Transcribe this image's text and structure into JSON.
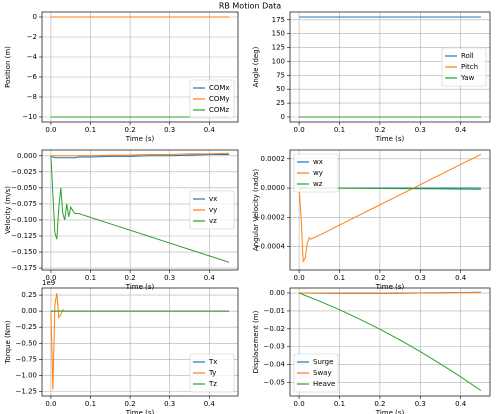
{
  "title": "RB Motion Data",
  "chart_data": [
    {
      "type": "line",
      "xlabel": "Time (s)",
      "ylabel": "Position (m)",
      "x": [
        0,
        0.45
      ],
      "series": [
        {
          "name": "COMx",
          "color": "#1f77b4",
          "values": [
            0,
            0
          ]
        },
        {
          "name": "COMy",
          "color": "#ff7f0e",
          "values": [
            0,
            0
          ]
        },
        {
          "name": "COMz",
          "color": "#2ca02c",
          "values": [
            -10,
            -10
          ]
        }
      ],
      "xlim": [
        -0.0225,
        0.4725
      ],
      "ylim": [
        -10.5,
        0.5
      ],
      "xticks": [
        {
          "value": 0,
          "label": "0.0"
        },
        0.1,
        0.2,
        0.3,
        0.4
      ],
      "yticks": [
        0,
        {
          "value": -2,
          "label": "−2"
        },
        {
          "value": -4,
          "label": "−4"
        },
        {
          "value": -6,
          "label": "−6"
        },
        {
          "value": -8,
          "label": "−8"
        },
        {
          "value": -10,
          "label": "−10"
        }
      ],
      "grid": true,
      "legend_loc": "lower right"
    },
    {
      "type": "line",
      "xlabel": "Time (s)",
      "ylabel": "Angle (deg)",
      "x": [
        0,
        0.45
      ],
      "series": [
        {
          "name": "Roll",
          "color": "#1f77b4",
          "values": [
            180,
            180
          ]
        },
        {
          "name": "Pitch",
          "color": "#ff7f0e",
          "values": [
            0,
            0
          ]
        },
        {
          "name": "Yaw",
          "color": "#2ca02c",
          "values": [
            0,
            0
          ]
        }
      ],
      "xlim": [
        -0.0225,
        0.4725
      ],
      "ylim": [
        -9,
        189
      ],
      "xticks": [
        {
          "value": 0,
          "label": "0.0"
        },
        0.1,
        0.2,
        0.3,
        0.4
      ],
      "yticks": [
        0,
        25,
        50,
        75,
        100,
        125,
        150,
        175
      ],
      "grid": true,
      "legend_loc": "center right"
    },
    {
      "type": "line",
      "xlabel": "Time (s)",
      "ylabel": "Velocity (m/s)",
      "x": [
        0,
        0.005,
        0.01,
        0.015,
        0.02,
        0.025,
        0.03,
        0.035,
        0.04,
        0.045,
        0.05,
        0.06,
        0.07,
        0.08,
        0.1,
        0.15,
        0.2,
        0.25,
        0.3,
        0.35,
        0.4,
        0.45
      ],
      "series": [
        {
          "name": "vx",
          "color": "#1f77b4",
          "values": [
            0,
            -0.002,
            -0.003,
            -0.003,
            -0.003,
            -0.003,
            -0.003,
            -0.003,
            -0.003,
            -0.003,
            -0.003,
            -0.003,
            -0.002,
            -0.002,
            -0.002,
            -0.001,
            -0.001,
            0,
            0,
            0.001,
            0.002,
            0.002
          ]
        },
        {
          "name": "vy",
          "color": "#ff7f0e",
          "values": [
            0,
            0,
            0,
            0,
            0,
            0,
            0,
            0,
            0,
            0,
            0,
            0,
            0,
            0,
            0,
            0.001,
            0.001,
            0.002,
            0.002,
            0.003,
            0.003,
            0.004
          ]
        },
        {
          "name": "vz",
          "color": "#2ca02c",
          "values": [
            0,
            -0.06,
            -0.12,
            -0.13,
            -0.08,
            -0.05,
            -0.09,
            -0.1,
            -0.075,
            -0.095,
            -0.08,
            -0.09,
            -0.09,
            -0.092,
            -0.096,
            -0.106,
            -0.116,
            -0.126,
            -0.136,
            -0.146,
            -0.156,
            -0.166
          ]
        }
      ],
      "xlim": [
        -0.0225,
        0.4725
      ],
      "ylim": [
        -0.178,
        0.009
      ],
      "xticks": [
        {
          "value": 0,
          "label": "0.0"
        },
        0.1,
        0.2,
        0.3,
        0.4
      ],
      "yticks": [
        {
          "value": 0,
          "label": "0.000"
        },
        {
          "value": -0.025,
          "label": "−0.025"
        },
        {
          "value": -0.05,
          "label": "−0.050"
        },
        {
          "value": -0.075,
          "label": "−0.075"
        },
        {
          "value": -0.1,
          "label": "−0.100"
        },
        {
          "value": -0.125,
          "label": "−0.125"
        },
        {
          "value": -0.15,
          "label": "−0.150"
        },
        {
          "value": -0.175,
          "label": "−0.175"
        }
      ],
      "grid": true,
      "legend_loc": "center right"
    },
    {
      "type": "line",
      "xlabel": "Time (s)",
      "ylabel": "Angular Velocity (rad/s)",
      "x": [
        0,
        0.005,
        0.01,
        0.015,
        0.02,
        0.025,
        0.03,
        0.035,
        0.04,
        0.045,
        0.05,
        0.06,
        0.07,
        0.08,
        0.1,
        0.15,
        0.2,
        0.25,
        0.3,
        0.35,
        0.4,
        0.45
      ],
      "series": [
        {
          "name": "wx",
          "color": "#1f77b4",
          "values": [
            0,
            0,
            0,
            0,
            0,
            0,
            0,
            0,
            0,
            0,
            0,
            0,
            0,
            0,
            0,
            0,
            0,
            0,
            0,
            0,
            0,
            0
          ]
        },
        {
          "name": "wy",
          "color": "#ff7f0e",
          "values": [
            0,
            -0.0002,
            -0.0005,
            -0.00048,
            -0.00038,
            -0.00034,
            -0.00035,
            -0.00034,
            -0.000336,
            -0.00033,
            -0.000322,
            -0.000309,
            -0.000295,
            -0.000281,
            -0.000253,
            -0.000184,
            -0.000115,
            -4.6e-05,
            2.3e-05,
            9.2e-05,
            0.000161,
            0.00023
          ]
        },
        {
          "name": "wz",
          "color": "#2ca02c",
          "values": [
            0,
            -5e-06,
            -2e-06,
            0,
            0,
            0,
            0,
            0,
            0,
            0,
            0,
            0,
            0,
            0,
            -1e-06,
            -2e-06,
            -3e-06,
            -4e-06,
            -5e-06,
            -6e-06,
            -7e-06,
            -8e-06
          ]
        }
      ],
      "xlim": [
        -0.0225,
        0.4725
      ],
      "ylim": [
        -0.00056,
        0.00026
      ],
      "xticks": [
        {
          "value": 0,
          "label": "0.0"
        },
        0.1,
        0.2,
        0.3,
        0.4
      ],
      "yticks": [
        0.0002,
        {
          "value": 0,
          "label": "0.0000"
        },
        {
          "value": -0.0002,
          "label": "−0.0002"
        },
        {
          "value": -0.0004,
          "label": "−0.0004"
        }
      ],
      "grid": true,
      "legend_loc": "upper left"
    },
    {
      "type": "line",
      "xlabel": "Time (s)",
      "ylabel": "Torque (Nm)",
      "offset_text": "1e9",
      "x": [
        0,
        0.005,
        0.01,
        0.015,
        0.02,
        0.025,
        0.03,
        0.035,
        0.04,
        0.05,
        0.1,
        0.2,
        0.3,
        0.45
      ],
      "series": [
        {
          "name": "Tx",
          "color": "#1f77b4",
          "values": [
            0,
            0,
            0,
            0,
            0,
            0,
            0,
            0,
            0,
            0,
            0,
            0,
            0,
            0
          ]
        },
        {
          "name": "Ty",
          "color": "#ff7f0e",
          "values": [
            0,
            -1.22,
            0.1,
            0.28,
            -0.1,
            -0.05,
            0.02,
            0,
            0,
            0,
            0,
            0,
            0,
            0
          ]
        },
        {
          "name": "Tz",
          "color": "#2ca02c",
          "values": [
            0,
            0,
            0,
            0,
            0,
            0,
            0,
            0,
            0,
            0,
            0,
            0,
            0,
            0
          ]
        }
      ],
      "xlim": [
        -0.0225,
        0.4725
      ],
      "ylim": [
        -1.32,
        0.36
      ],
      "xticks": [
        {
          "value": 0,
          "label": "0.0"
        },
        0.1,
        0.2,
        0.3,
        0.4
      ],
      "yticks": [
        0.25,
        {
          "value": 0,
          "label": "0.00"
        },
        {
          "value": -0.25,
          "label": "−0.25"
        },
        {
          "value": -0.5,
          "label": "−0.50"
        },
        {
          "value": -0.75,
          "label": "−0.75"
        },
        {
          "value": -1,
          "label": "−1.00"
        },
        {
          "value": -1.25,
          "label": "−1.25"
        }
      ],
      "grid": true,
      "legend_loc": "lower right"
    },
    {
      "type": "line",
      "xlabel": "Time (s)",
      "ylabel": "Displacement (m)",
      "x": [
        0,
        0.05,
        0.1,
        0.15,
        0.2,
        0.25,
        0.3,
        0.35,
        0.4,
        0.45
      ],
      "series": [
        {
          "name": "Surge",
          "color": "#1f77b4",
          "values": [
            0,
            -0.0001,
            -0.0002,
            -0.0002,
            -0.0002,
            -0.0001,
            0,
            0.0001,
            0.0003,
            0.0004
          ]
        },
        {
          "name": "Sway",
          "color": "#ff7f0e",
          "values": [
            0,
            0,
            0,
            0,
            0,
            0.0001,
            0.0001,
            0.0002,
            0.0002,
            0.0003
          ]
        },
        {
          "name": "Heave",
          "color": "#2ca02c",
          "values": [
            0,
            -0.0045,
            -0.0093,
            -0.0146,
            -0.0202,
            -0.0263,
            -0.0327,
            -0.0396,
            -0.0468,
            -0.0545
          ]
        }
      ],
      "xlim": [
        -0.0225,
        0.4725
      ],
      "ylim": [
        -0.0575,
        0.0028
      ],
      "xticks": [
        {
          "value": 0,
          "label": "0.0"
        },
        0.1,
        0.2,
        0.3,
        0.4
      ],
      "yticks": [
        {
          "value": 0,
          "label": "0.00"
        },
        {
          "value": -0.01,
          "label": "−0.01"
        },
        {
          "value": -0.02,
          "label": "−0.02"
        },
        {
          "value": -0.03,
          "label": "−0.03"
        },
        {
          "value": -0.04,
          "label": "−0.04"
        },
        {
          "value": -0.05,
          "label": "−0.05"
        }
      ],
      "grid": true,
      "legend_loc": "lower left"
    }
  ]
}
